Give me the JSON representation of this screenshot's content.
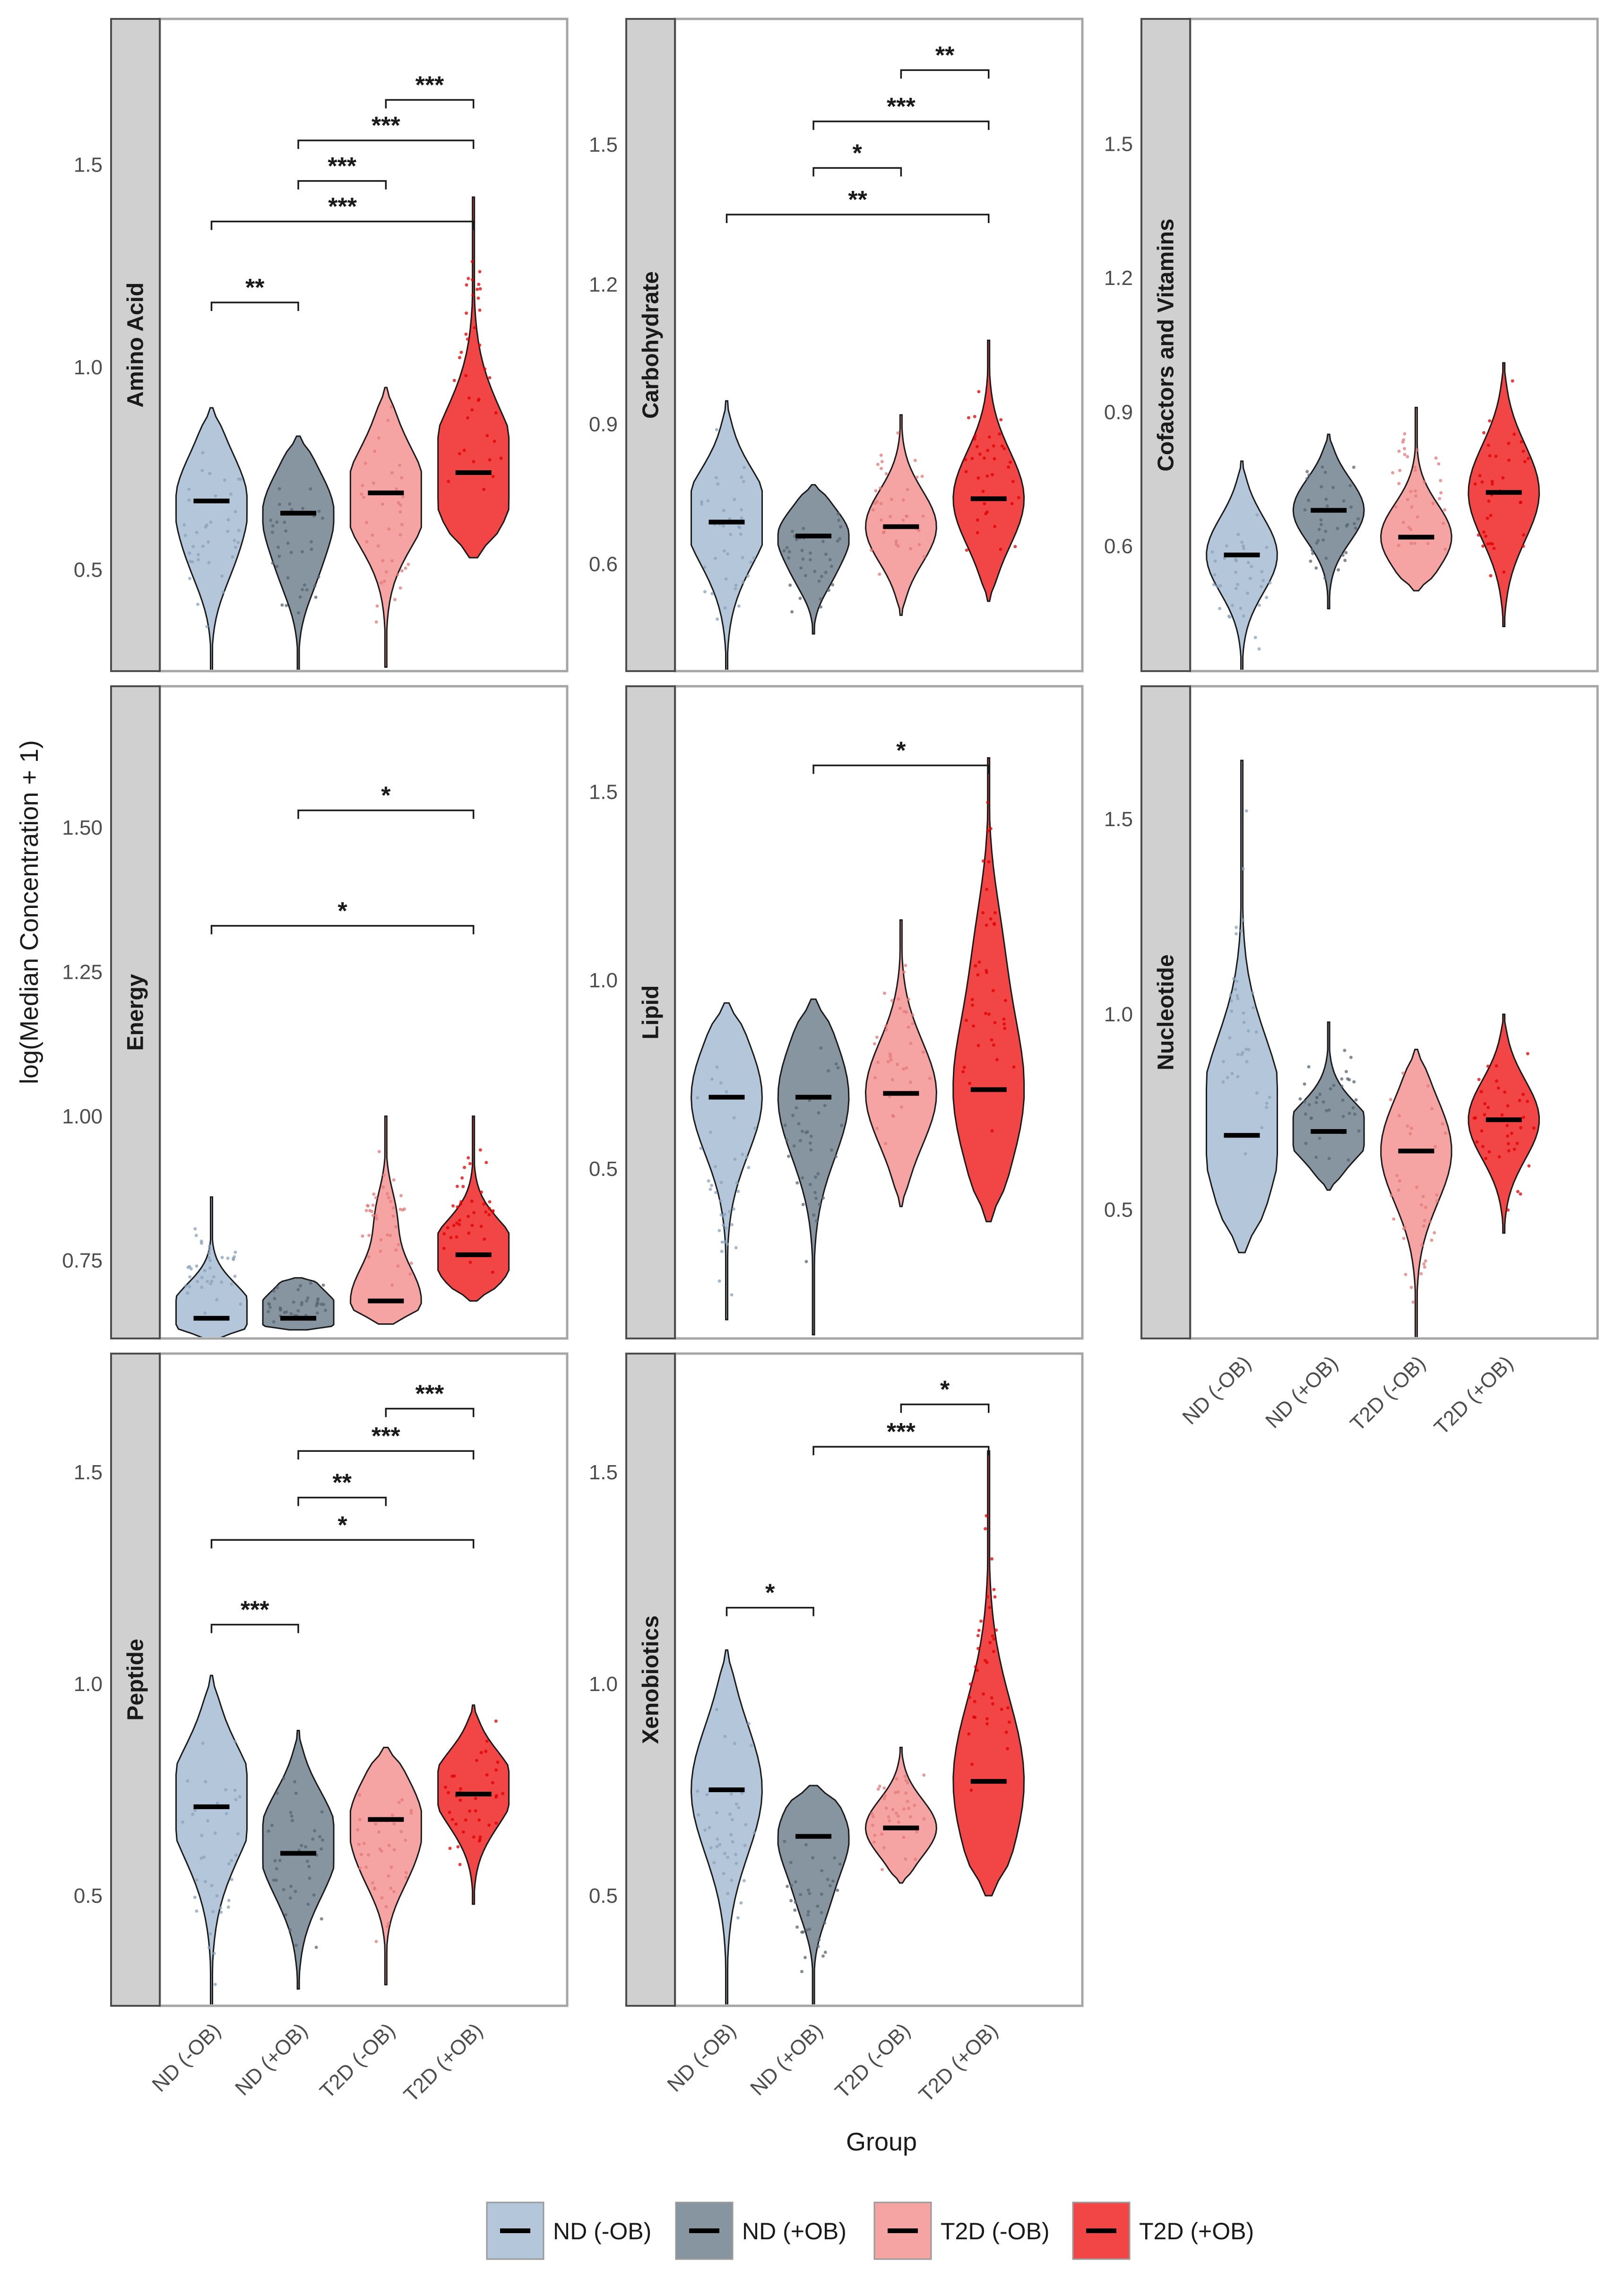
{
  "figure": {
    "y_axis_title": "log(Median Concentration + 1)",
    "x_axis_title": "Group"
  },
  "groups": [
    "ND (-OB)",
    "ND (+OB)",
    "T2D (-OB)",
    "T2D (+OB)"
  ],
  "colors": {
    "ND (-OB)": "#b4c7da",
    "ND (+OB)": "#8795a0",
    "T2D (-OB)": "#f6a3a3",
    "T2D (+OB)": "#f24646"
  },
  "legend": {
    "items": [
      {
        "label": "ND (-OB)",
        "color": "#b4c7da"
      },
      {
        "label": "ND (+OB)",
        "color": "#8795a0"
      },
      {
        "label": "T2D (-OB)",
        "color": "#f6a3a3"
      },
      {
        "label": "T2D (+OB)",
        "color": "#f24646"
      }
    ]
  },
  "chart_data": [
    {
      "type": "violin",
      "title": "Amino Acid",
      "ylim": [
        0.25,
        1.86
      ],
      "yticks": [
        0.5,
        1.0,
        1.5
      ],
      "ytick_labels": [
        "0.5",
        "1.0",
        "1.5"
      ],
      "series": [
        {
          "group": "ND (-OB)",
          "median": 0.67,
          "min": 0.25,
          "max": 0.9
        },
        {
          "group": "ND (+OB)",
          "median": 0.64,
          "min": 0.25,
          "max": 0.83
        },
        {
          "group": "T2D (-OB)",
          "median": 0.69,
          "min": 0.26,
          "max": 0.95
        },
        {
          "group": "T2D (+OB)",
          "median": 0.74,
          "min": 0.53,
          "max": 1.42
        }
      ],
      "comparisons": [
        {
          "from": "ND (-OB)",
          "to": "ND (+OB)",
          "y": 1.16,
          "label": "**"
        },
        {
          "from": "ND (-OB)",
          "to": "T2D (+OB)",
          "y": 1.36,
          "label": "***"
        },
        {
          "from": "ND (+OB)",
          "to": "T2D (-OB)",
          "y": 1.46,
          "label": "***"
        },
        {
          "from": "ND (+OB)",
          "to": "T2D (+OB)",
          "y": 1.56,
          "label": "***"
        },
        {
          "from": "T2D (-OB)",
          "to": "T2D (+OB)",
          "y": 1.66,
          "label": "***"
        }
      ]
    },
    {
      "type": "violin",
      "title": "Carbohydrate",
      "ylim": [
        0.37,
        1.77
      ],
      "yticks": [
        0.6,
        0.9,
        1.2,
        1.5
      ],
      "ytick_labels": [
        "0.6",
        "0.9",
        "1.2",
        "1.5"
      ],
      "series": [
        {
          "group": "ND (-OB)",
          "median": 0.69,
          "min": 0.37,
          "max": 0.95
        },
        {
          "group": "ND (+OB)",
          "median": 0.66,
          "min": 0.45,
          "max": 0.77
        },
        {
          "group": "T2D (-OB)",
          "median": 0.68,
          "min": 0.49,
          "max": 0.92
        },
        {
          "group": "T2D (+OB)",
          "median": 0.74,
          "min": 0.52,
          "max": 1.08
        }
      ],
      "comparisons": [
        {
          "from": "ND (-OB)",
          "to": "T2D (+OB)",
          "y": 1.35,
          "label": "**"
        },
        {
          "from": "ND (+OB)",
          "to": "T2D (-OB)",
          "y": 1.45,
          "label": "*"
        },
        {
          "from": "ND (+OB)",
          "to": "T2D (+OB)",
          "y": 1.55,
          "label": "***"
        },
        {
          "from": "T2D (-OB)",
          "to": "T2D (+OB)",
          "y": 1.66,
          "label": "**"
        }
      ]
    },
    {
      "type": "violin",
      "title": "Cofactors and Vitamins",
      "ylim": [
        0.32,
        1.78
      ],
      "yticks": [
        0.6,
        0.9,
        1.2,
        1.5
      ],
      "ytick_labels": [
        "0.6",
        "0.9",
        "1.2",
        "1.5"
      ],
      "series": [
        {
          "group": "ND (-OB)",
          "median": 0.58,
          "min": 0.32,
          "max": 0.79
        },
        {
          "group": "ND (+OB)",
          "median": 0.68,
          "min": 0.46,
          "max": 0.85
        },
        {
          "group": "T2D (-OB)",
          "median": 0.62,
          "min": 0.5,
          "max": 0.91
        },
        {
          "group": "T2D (+OB)",
          "median": 0.72,
          "min": 0.42,
          "max": 1.01
        }
      ],
      "comparisons": []
    },
    {
      "type": "violin",
      "title": "Energy",
      "ylim": [
        0.615,
        1.745
      ],
      "yticks": [
        0.75,
        1.0,
        1.25,
        1.5
      ],
      "ytick_labels": [
        "0.75",
        "1.00",
        "1.25",
        "1.50"
      ],
      "series": [
        {
          "group": "ND (-OB)",
          "median": 0.65,
          "min": 0.615,
          "max": 0.86
        },
        {
          "group": "ND (+OB)",
          "median": 0.65,
          "min": 0.63,
          "max": 0.72
        },
        {
          "group": "T2D (-OB)",
          "median": 0.68,
          "min": 0.64,
          "max": 1.0
        },
        {
          "group": "T2D (+OB)",
          "median": 0.76,
          "min": 0.68,
          "max": 1.0
        }
      ],
      "comparisons": [
        {
          "from": "ND (-OB)",
          "to": "T2D (+OB)",
          "y": 1.33,
          "label": "*"
        },
        {
          "from": "ND (+OB)",
          "to": "T2D (+OB)",
          "y": 1.53,
          "label": "*"
        }
      ]
    },
    {
      "type": "violin",
      "title": "Lipid",
      "ylim": [
        0.05,
        1.78
      ],
      "yticks": [
        0.5,
        1.0,
        1.5
      ],
      "ytick_labels": [
        "0.5",
        "1.0",
        "1.5"
      ],
      "series": [
        {
          "group": "ND (-OB)",
          "median": 0.69,
          "min": 0.1,
          "max": 0.94
        },
        {
          "group": "ND (+OB)",
          "median": 0.69,
          "min": 0.06,
          "max": 0.95
        },
        {
          "group": "T2D (-OB)",
          "median": 0.7,
          "min": 0.4,
          "max": 1.16
        },
        {
          "group": "T2D (+OB)",
          "median": 0.71,
          "min": 0.36,
          "max": 1.59
        }
      ],
      "comparisons": [
        {
          "from": "ND (+OB)",
          "to": "T2D (+OB)",
          "y": 1.57,
          "label": "*"
        }
      ]
    },
    {
      "type": "violin",
      "title": "Nucleotide",
      "ylim": [
        0.17,
        1.84
      ],
      "yticks": [
        0.5,
        1.0,
        1.5
      ],
      "ytick_labels": [
        "0.5",
        "1.0",
        "1.5"
      ],
      "series": [
        {
          "group": "ND (-OB)",
          "median": 0.69,
          "min": 0.39,
          "max": 1.65
        },
        {
          "group": "ND (+OB)",
          "median": 0.7,
          "min": 0.55,
          "max": 0.98
        },
        {
          "group": "T2D (-OB)",
          "median": 0.65,
          "min": 0.17,
          "max": 0.91
        },
        {
          "group": "T2D (+OB)",
          "median": 0.73,
          "min": 0.44,
          "max": 1.0
        }
      ],
      "comparisons": []
    },
    {
      "type": "violin",
      "title": "Peptide",
      "ylim": [
        0.24,
        1.78
      ],
      "yticks": [
        0.5,
        1.0,
        1.5
      ],
      "ytick_labels": [
        "0.5",
        "1.0",
        "1.5"
      ],
      "series": [
        {
          "group": "ND (-OB)",
          "median": 0.71,
          "min": 0.24,
          "max": 1.02
        },
        {
          "group": "ND (+OB)",
          "median": 0.6,
          "min": 0.28,
          "max": 0.89
        },
        {
          "group": "T2D (-OB)",
          "median": 0.68,
          "min": 0.29,
          "max": 0.85
        },
        {
          "group": "T2D (+OB)",
          "median": 0.74,
          "min": 0.48,
          "max": 0.95
        }
      ],
      "comparisons": [
        {
          "from": "ND (-OB)",
          "to": "ND (+OB)",
          "y": 1.14,
          "label": "***"
        },
        {
          "from": "ND (-OB)",
          "to": "T2D (+OB)",
          "y": 1.34,
          "label": "*"
        },
        {
          "from": "ND (+OB)",
          "to": "T2D (-OB)",
          "y": 1.44,
          "label": "**"
        },
        {
          "from": "ND (+OB)",
          "to": "T2D (+OB)",
          "y": 1.55,
          "label": "***"
        },
        {
          "from": "T2D (-OB)",
          "to": "T2D (+OB)",
          "y": 1.65,
          "label": "***"
        }
      ]
    },
    {
      "type": "violin",
      "title": "Xenobiotics",
      "ylim": [
        0.24,
        1.78
      ],
      "yticks": [
        0.5,
        1.0,
        1.5
      ],
      "ytick_labels": [
        "0.5",
        "1.0",
        "1.5"
      ],
      "series": [
        {
          "group": "ND (-OB)",
          "median": 0.75,
          "min": 0.24,
          "max": 1.08
        },
        {
          "group": "ND (+OB)",
          "median": 0.64,
          "min": 0.24,
          "max": 0.76
        },
        {
          "group": "T2D (-OB)",
          "median": 0.66,
          "min": 0.53,
          "max": 0.85
        },
        {
          "group": "T2D (+OB)",
          "median": 0.77,
          "min": 0.5,
          "max": 1.55
        }
      ],
      "comparisons": [
        {
          "from": "ND (-OB)",
          "to": "ND (+OB)",
          "y": 1.18,
          "label": "*"
        },
        {
          "from": "ND (+OB)",
          "to": "T2D (+OB)",
          "y": 1.56,
          "label": "***"
        },
        {
          "from": "T2D (-OB)",
          "to": "T2D (+OB)",
          "y": 1.66,
          "label": "*"
        }
      ]
    }
  ]
}
